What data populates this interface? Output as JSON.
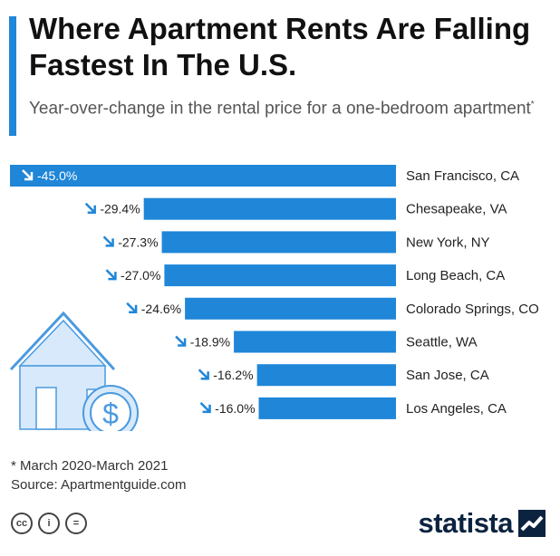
{
  "header": {
    "title": "Where Apartment Rents Are Falling Fastest In The U.S.",
    "subtitle": "Year-over-change in the rental price for a one-bedroom apartment",
    "subtitle_mark": "*"
  },
  "chart_data": {
    "type": "bar",
    "orientation": "horizontal",
    "categories": [
      "San Francisco, CA",
      "Chesapeake, VA",
      "New York, NY",
      "Long Beach, CA",
      "Colorado Springs, CO",
      "Seattle, WA",
      "San Jose, CA",
      "Los Angeles, CA"
    ],
    "values": [
      -45.0,
      -29.4,
      -27.3,
      -27.0,
      -24.6,
      -18.9,
      -16.2,
      -16.0
    ],
    "labels": [
      "-45.0%",
      "-29.4%",
      "-27.3%",
      "-27.0%",
      "-24.6%",
      "-18.9%",
      "-16.2%",
      "-16.0%"
    ],
    "unit": "%",
    "xlim": [
      -45,
      0
    ],
    "bar_color": "#1f86d8",
    "arrow_icon": "down-right-arrow-icon"
  },
  "footer": {
    "note": "* March 2020-March 2021",
    "source": "Source: Apartmentguide.com",
    "license_icons": [
      "cc-icon",
      "attribution-icon",
      "no-derivatives-icon"
    ],
    "license_glyphs": [
      "cc",
      "i",
      "="
    ],
    "brand": "statista"
  },
  "colors": {
    "accent": "#1f86d8",
    "house_fill": "#d7e9fa",
    "house_stroke": "#4a9ae0",
    "brand": "#0c2340"
  }
}
